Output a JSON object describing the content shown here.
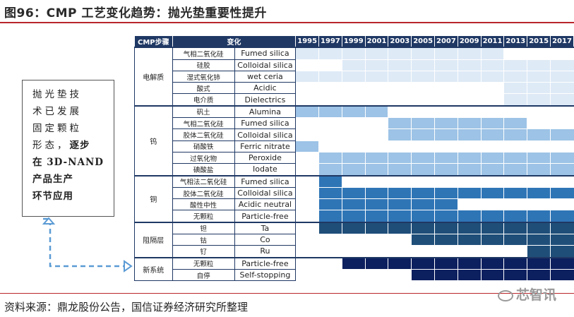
{
  "title": "图96：CMP 工艺变化趋势：抛光垫重要性提升",
  "source": "资料来源：鼎龙股份公告，国信证券经济研究所整理",
  "watermark": "芯智讯",
  "note": {
    "lines": [
      "抛光垫技",
      "术已发展",
      "固定颗粒",
      "形态，"
    ],
    "emphasis_inline": "逐步",
    "emphasis_lines": [
      "在 3D-NAND",
      "产品生产",
      "环节应用"
    ]
  },
  "table": {
    "header": {
      "step": "CMP步骤",
      "change": "变化"
    },
    "years": [
      "1995",
      "1997",
      "1999",
      "2001",
      "2003",
      "2005",
      "2007",
      "2009",
      "2011",
      "2013",
      "2015",
      "2017"
    ],
    "colors": {
      "lightest": "#deeaf6",
      "light": "#9dc3e6",
      "medium": "#2e75b6",
      "dark": "#1f4e79",
      "darkest": "#0c1f5e",
      "empty": "#ffffff"
    },
    "groups": [
      {
        "name": "电解质",
        "rows": [
          {
            "cn": "气相二氧化硅",
            "en": "Fumed silica",
            "shade": "lightest",
            "start": 0,
            "end": 9
          },
          {
            "cn": "硅胶",
            "en": "Colloidal silica",
            "shade": "lightest",
            "start": 2,
            "end": 12
          },
          {
            "cn": "湿式氧化铈",
            "en": "wet ceria",
            "shade": "lightest",
            "start": 0,
            "end": 12
          },
          {
            "cn": "酸式",
            "en": "Acidic",
            "shade": "lightest",
            "start": 9,
            "end": 12
          },
          {
            "cn": "电介质",
            "en": "Dielectrics",
            "shade": "lightest",
            "start": 9,
            "end": 12
          }
        ]
      },
      {
        "name": "钨",
        "rows": [
          {
            "cn": "矾土",
            "en": "Alumina",
            "shade": "light",
            "start": 0,
            "end": 4
          },
          {
            "cn": "气相二氧化硅",
            "en": "Fumed silica",
            "shade": "light",
            "start": 4,
            "end": 10
          },
          {
            "cn": "胶体二氧化硅",
            "en": "Colloidal silica",
            "shade": "light",
            "start": 4,
            "end": 12
          },
          {
            "cn": "硝酸铁",
            "en": "Ferric nitrate",
            "shade": "light",
            "start": 0,
            "end": 1
          },
          {
            "cn": "过氧化物",
            "en": "Peroxide",
            "shade": "light",
            "start": 1,
            "end": 12
          },
          {
            "cn": "碘酸盐",
            "en": "Iodate",
            "shade": "light",
            "start": 1,
            "end": 12
          }
        ]
      },
      {
        "name": "铜",
        "rows": [
          {
            "cn": "气相法二氧化硅",
            "en": "Fumed silica",
            "shade": "medium",
            "start": 1,
            "end": 2
          },
          {
            "cn": "胶体二氧化硅",
            "en": "Colloidal silica",
            "shade": "medium",
            "start": 1,
            "end": 12
          },
          {
            "cn": "酸性中性",
            "en": "Acidic neutral",
            "shade": "medium",
            "start": 1,
            "end": 7
          },
          {
            "cn": "无颗粒",
            "en": "Particle-free",
            "shade": "medium",
            "start": 1,
            "end": 12
          }
        ]
      },
      {
        "name": "阻隔层",
        "rows": [
          {
            "cn": "钽",
            "en": "Ta",
            "shade": "dark",
            "start": 1,
            "end": 12
          },
          {
            "cn": "钴",
            "en": "Co",
            "shade": "dark",
            "start": 5,
            "end": 12
          },
          {
            "cn": "钌",
            "en": "Ru",
            "shade": "dark",
            "start": 10,
            "end": 12
          }
        ]
      },
      {
        "name": "新系统",
        "rows": [
          {
            "cn": "无颗粒",
            "en": "Particle-free",
            "shade": "darkest",
            "start": 2,
            "end": 12
          },
          {
            "cn": "自停",
            "en": "Self-stopping",
            "shade": "darkest",
            "start": 5,
            "end": 12
          }
        ]
      }
    ]
  }
}
